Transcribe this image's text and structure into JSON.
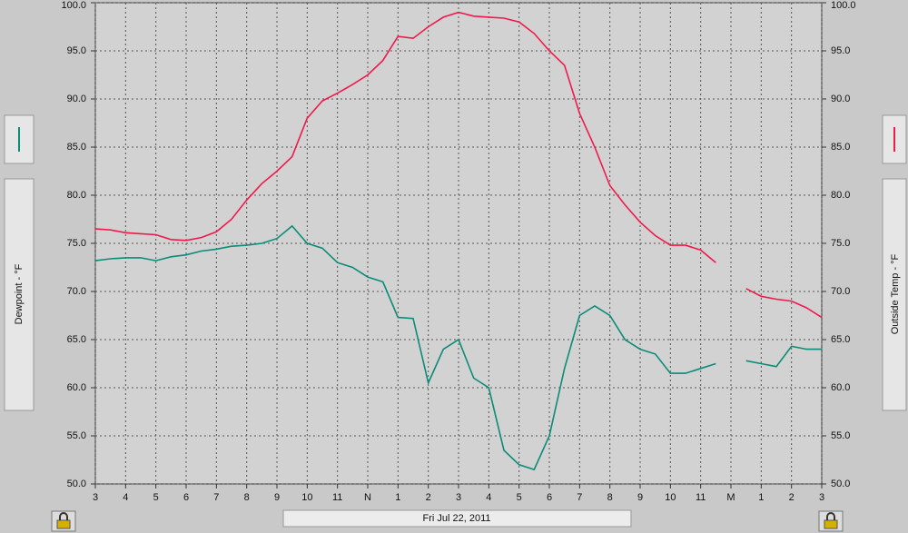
{
  "chart_data": {
    "type": "line",
    "xlabel": "Fri Jul 22, 2011",
    "ylabel": "Dewpoint - °F",
    "y2label": "Outside Temp - °F",
    "x": [
      0,
      0.5,
      1,
      1.5,
      2,
      2.5,
      3,
      3.5,
      4,
      4.5,
      5,
      5.5,
      6,
      6.5,
      7,
      7.5,
      8,
      8.5,
      9,
      9.5,
      10,
      10.5,
      11,
      11.5,
      12,
      12.5,
      13,
      13.5,
      14,
      14.5,
      15,
      15.5,
      16,
      16.5,
      17,
      17.5,
      18,
      18.5,
      19,
      19.5,
      20,
      20.5,
      21,
      21.5,
      22,
      22.5,
      23,
      23.5,
      24
    ],
    "xlim": [
      0,
      24
    ],
    "xticks": [
      {
        "value": 0,
        "label": "3"
      },
      {
        "value": 1,
        "label": "4"
      },
      {
        "value": 2,
        "label": "5"
      },
      {
        "value": 3,
        "label": "6"
      },
      {
        "value": 4,
        "label": "7"
      },
      {
        "value": 5,
        "label": "8"
      },
      {
        "value": 6,
        "label": "9"
      },
      {
        "value": 7,
        "label": "10"
      },
      {
        "value": 8,
        "label": "11"
      },
      {
        "value": 9,
        "label": "N"
      },
      {
        "value": 10,
        "label": "1"
      },
      {
        "value": 11,
        "label": "2"
      },
      {
        "value": 12,
        "label": "3"
      },
      {
        "value": 13,
        "label": "4"
      },
      {
        "value": 14,
        "label": "5"
      },
      {
        "value": 15,
        "label": "6"
      },
      {
        "value": 16,
        "label": "7"
      },
      {
        "value": 17,
        "label": "8"
      },
      {
        "value": 18,
        "label": "9"
      },
      {
        "value": 19,
        "label": "10"
      },
      {
        "value": 20,
        "label": "11"
      },
      {
        "value": 21,
        "label": "M"
      },
      {
        "value": 22,
        "label": "1"
      },
      {
        "value": 23,
        "label": "2"
      },
      {
        "value": 24,
        "label": "3"
      }
    ],
    "ylim": [
      50,
      100
    ],
    "yticks": [
      {
        "value": 50,
        "label": "50.0"
      },
      {
        "value": 55,
        "label": "55.0"
      },
      {
        "value": 60,
        "label": "60.0"
      },
      {
        "value": 65,
        "label": "65.0"
      },
      {
        "value": 70,
        "label": "70.0"
      },
      {
        "value": 75,
        "label": "75.0"
      },
      {
        "value": 80,
        "label": "80.0"
      },
      {
        "value": 85,
        "label": "85.0"
      },
      {
        "value": 90,
        "label": "90.0"
      },
      {
        "value": 95,
        "label": "95.0"
      },
      {
        "value": 100,
        "label": "100.0"
      }
    ],
    "y2lim": [
      50,
      100
    ],
    "y2ticks": [
      {
        "value": 50,
        "label": "50.0"
      },
      {
        "value": 55,
        "label": "55.0"
      },
      {
        "value": 60,
        "label": "60.0"
      },
      {
        "value": 65,
        "label": "65.0"
      },
      {
        "value": 70,
        "label": "70.0"
      },
      {
        "value": 75,
        "label": "75.0"
      },
      {
        "value": 80,
        "label": "80.0"
      },
      {
        "value": 85,
        "label": "85.0"
      },
      {
        "value": 90,
        "label": "90.0"
      },
      {
        "value": 95,
        "label": "95.0"
      },
      {
        "value": 100,
        "label": "100.0"
      }
    ],
    "grid": true,
    "series": [
      {
        "name": "Outside Temp",
        "color": "#f0194b",
        "axis": "y2",
        "values": [
          76.5,
          76.4,
          76.1,
          76.0,
          75.9,
          75.4,
          75.3,
          75.6,
          76.2,
          77.5,
          79.5,
          81.2,
          82.5,
          84.0,
          88.0,
          89.8,
          90.6,
          91.5,
          92.5,
          94.0,
          96.5,
          96.3,
          97.5,
          98.5,
          99.0,
          98.6,
          98.5,
          98.4,
          98.0,
          96.8,
          95.0,
          93.5,
          88.5,
          85.0,
          81.0,
          79.0,
          77.2,
          75.8,
          74.8,
          74.8,
          74.3,
          73.0,
          null,
          70.3,
          69.5,
          69.2,
          69.0,
          68.3,
          67.3
        ]
      },
      {
        "name": "Dewpoint",
        "color": "#0a8c78",
        "values": [
          73.2,
          73.4,
          73.5,
          73.5,
          73.2,
          73.6,
          73.8,
          74.2,
          74.4,
          74.7,
          74.8,
          75.0,
          75.5,
          76.8,
          75.0,
          74.5,
          73.0,
          72.5,
          71.5,
          71.0,
          67.3,
          67.2,
          60.5,
          64.0,
          65.0,
          61.0,
          60.0,
          53.5,
          52.0,
          51.5,
          55.0,
          62.0,
          67.5,
          68.5,
          67.5,
          65.0,
          64.0,
          63.5,
          61.5,
          61.5,
          62.0,
          62.5,
          null,
          62.8,
          62.5,
          62.2,
          64.3,
          64.0,
          64.0
        ]
      }
    ]
  }
}
